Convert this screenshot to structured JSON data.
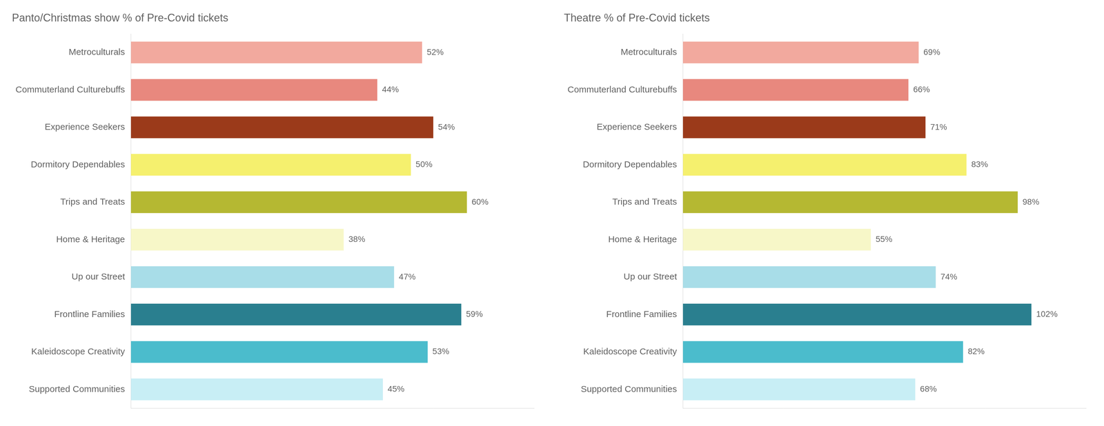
{
  "chart_data": [
    {
      "type": "bar",
      "orientation": "horizontal",
      "title": "Panto/Christmas show % of Pre-Covid tickets",
      "categories": [
        "Metroculturals",
        "Commuterland Culturebuffs",
        "Experience Seekers",
        "Dormitory Dependables",
        "Trips and Treats",
        "Home & Heritage",
        "Up our Street",
        "Frontline Families",
        "Kaleidoscope Creativity",
        "Supported Communities"
      ],
      "values": [
        52,
        44,
        54,
        50,
        60,
        38,
        47,
        59,
        53,
        45
      ],
      "value_labels": [
        "52%",
        "44%",
        "54%",
        "50%",
        "60%",
        "38%",
        "47%",
        "59%",
        "53%",
        "45%"
      ],
      "colors": [
        "#f2a99e",
        "#e8887e",
        "#9b3a1a",
        "#f5f06e",
        "#b5b832",
        "#f7f7c8",
        "#a8dde8",
        "#2a7f8f",
        "#4bbccc",
        "#c8eef5"
      ],
      "xlim": [
        0,
        72
      ],
      "grid": false,
      "data_labels": true,
      "tick_labels": "y"
    },
    {
      "type": "bar",
      "orientation": "horizontal",
      "title": "Theatre % of Pre-Covid tickets",
      "categories": [
        "Metroculturals",
        "Commuterland Culturebuffs",
        "Experience Seekers",
        "Dormitory Dependables",
        "Trips and Treats",
        "Home & Heritage",
        "Up our Street",
        "Frontline Families",
        "Kaleidoscope Creativity",
        "Supported Communities"
      ],
      "values": [
        69,
        66,
        71,
        83,
        98,
        55,
        74,
        102,
        82,
        68
      ],
      "value_labels": [
        "69%",
        "66%",
        "71%",
        "83%",
        "98%",
        "55%",
        "74%",
        "102%",
        "82%",
        "68%"
      ],
      "colors": [
        "#f2a99e",
        "#e8887e",
        "#9b3a1a",
        "#f5f06e",
        "#b5b832",
        "#f7f7c8",
        "#a8dde8",
        "#2a7f8f",
        "#4bbccc",
        "#c8eef5"
      ],
      "xlim": [
        0,
        118
      ],
      "grid": false,
      "data_labels": true,
      "tick_labels": "y"
    }
  ]
}
